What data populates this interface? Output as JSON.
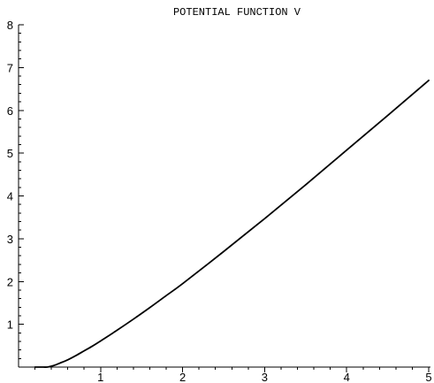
{
  "chart_data": {
    "type": "line",
    "title": "POTENTIAL FUNCTION V",
    "xlabel": "",
    "ylabel": "",
    "xlim": [
      0,
      5
    ],
    "ylim": [
      0,
      8
    ],
    "x_ticks": [
      {
        "value": 1,
        "label": "1"
      },
      {
        "value": 2,
        "label": "2"
      },
      {
        "value": 3,
        "label": "3"
      },
      {
        "value": 4,
        "label": "4"
      },
      {
        "value": 5,
        "label": "5"
      }
    ],
    "y_ticks": [
      {
        "value": 1,
        "label": "1"
      },
      {
        "value": 2,
        "label": "2"
      },
      {
        "value": 3,
        "label": "3"
      },
      {
        "value": 4,
        "label": "4"
      },
      {
        "value": 5,
        "label": "5"
      },
      {
        "value": 6,
        "label": "6"
      },
      {
        "value": 7,
        "label": "7"
      },
      {
        "value": 8,
        "label": "8"
      }
    ],
    "x_minor_step": 0.2,
    "y_minor_step": 0.2,
    "grid": false,
    "legend": "none",
    "series": [
      {
        "x": [
          0.2,
          0.3,
          0.35,
          0.4,
          0.45,
          0.5,
          0.6,
          0.7,
          0.8,
          0.9,
          1.0,
          1.2,
          1.4,
          1.6,
          1.8,
          2.0,
          2.5,
          3.0,
          3.5,
          4.0,
          4.5,
          5.0
        ],
        "y": [
          0.0,
          0.0,
          0.0,
          0.02,
          0.05,
          0.09,
          0.17,
          0.27,
          0.38,
          0.49,
          0.61,
          0.86,
          1.12,
          1.39,
          1.67,
          1.95,
          2.7,
          3.47,
          4.26,
          5.07,
          5.88,
          6.7
        ],
        "color": "#000000"
      }
    ]
  }
}
